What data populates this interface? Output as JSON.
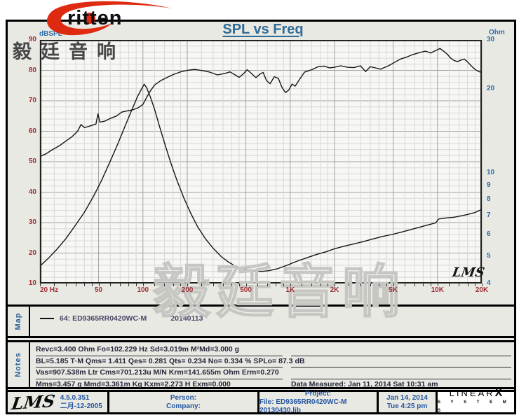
{
  "title": "SPL vs Freq",
  "brand": {
    "logo_word": "ritten",
    "logo_swoosh_color": "#dd2a10",
    "cjk": "毅廷音响"
  },
  "watermark": {
    "center": "毅廷音响"
  },
  "plot_logo": "LMS",
  "chart_data": {
    "type": "line",
    "title": "SPL vs Freq",
    "x_axis": {
      "scale": "log",
      "min": 20,
      "max": 20000,
      "ticks": [
        {
          "f": 20,
          "label": "20 Hz"
        },
        {
          "f": 50,
          "label": "50"
        },
        {
          "f": 100,
          "label": "100"
        },
        {
          "f": 200,
          "label": "200"
        },
        {
          "f": 500,
          "label": "500"
        },
        {
          "f": 1000,
          "label": "1K"
        },
        {
          "f": 2000,
          "label": "2K"
        },
        {
          "f": 5000,
          "label": "5K"
        },
        {
          "f": 10000,
          "label": "10K"
        },
        {
          "f": 20000,
          "label": "20K"
        }
      ],
      "minor": [
        25,
        30,
        35,
        40,
        45,
        60,
        70,
        80,
        90,
        120,
        140,
        160,
        180,
        250,
        300,
        350,
        400,
        450,
        600,
        700,
        800,
        900,
        1200,
        1400,
        1600,
        1800,
        2500,
        3000,
        3500,
        4000,
        4500,
        6000,
        7000,
        8000,
        9000,
        12000,
        14000,
        16000,
        18000
      ]
    },
    "y_left": {
      "label": "dBSPL",
      "scale": "linear",
      "min": 10,
      "max": 90,
      "ticks": [
        90,
        80,
        70,
        60,
        50,
        40,
        30,
        20,
        10
      ]
    },
    "y_right": {
      "label": "Ohm",
      "scale": "log",
      "min": 4,
      "max": 30,
      "ticks": [
        30,
        20,
        10,
        9,
        8,
        7,
        6,
        5,
        4
      ]
    },
    "colors": {
      "plot_bg": "#f7f7f4",
      "grid_minor": "#d8d8d4",
      "grid_major": "#a2a29e",
      "curve": "#151515",
      "border": "#222"
    },
    "series": [
      {
        "name": "SPL (dBSPL)",
        "axis": "left",
        "points": [
          [
            20,
            51.7
          ],
          [
            22,
            52.6
          ],
          [
            24,
            53.8
          ],
          [
            27,
            55.2
          ],
          [
            30,
            56.8
          ],
          [
            33,
            58.2
          ],
          [
            36,
            60
          ],
          [
            38,
            62.2
          ],
          [
            40,
            61.2
          ],
          [
            43,
            61.6
          ],
          [
            46,
            62.1
          ],
          [
            48,
            62.4
          ],
          [
            49.5,
            65.7
          ],
          [
            51,
            63
          ],
          [
            55,
            63.3
          ],
          [
            60,
            64.2
          ],
          [
            66,
            65
          ],
          [
            72,
            66.3
          ],
          [
            78,
            66.7
          ],
          [
            85,
            67
          ],
          [
            92,
            67.6
          ],
          [
            100,
            68.8
          ],
          [
            107,
            71.5
          ],
          [
            113,
            73.4
          ],
          [
            120,
            75.2
          ],
          [
            132,
            76.6
          ],
          [
            145,
            77.6
          ],
          [
            160,
            78.6
          ],
          [
            180,
            79.5
          ],
          [
            200,
            80
          ],
          [
            225,
            80.3
          ],
          [
            255,
            79.9
          ],
          [
            285,
            79.4
          ],
          [
            320,
            78.5
          ],
          [
            360,
            79
          ],
          [
            390,
            79.5
          ],
          [
            420,
            78.6
          ],
          [
            450,
            77.7
          ],
          [
            480,
            78.8
          ],
          [
            510,
            80.2
          ],
          [
            545,
            79
          ],
          [
            585,
            77.6
          ],
          [
            625,
            78.8
          ],
          [
            655,
            79.3
          ],
          [
            690,
            76.7
          ],
          [
            730,
            75.6
          ],
          [
            780,
            77.9
          ],
          [
            830,
            77.4
          ],
          [
            880,
            74.4
          ],
          [
            930,
            72.7
          ],
          [
            980,
            73.6
          ],
          [
            1030,
            75.5
          ],
          [
            1080,
            74.8
          ],
          [
            1150,
            76.8
          ],
          [
            1250,
            79.4
          ],
          [
            1400,
            80.2
          ],
          [
            1550,
            81.2
          ],
          [
            1700,
            81.4
          ],
          [
            1850,
            80.8
          ],
          [
            2000,
            81
          ],
          [
            2200,
            81.5
          ],
          [
            2450,
            81
          ],
          [
            2700,
            80.9
          ],
          [
            3000,
            81.5
          ],
          [
            3250,
            79.6
          ],
          [
            3500,
            81.2
          ],
          [
            3800,
            80.8
          ],
          [
            4100,
            80.4
          ],
          [
            4400,
            81
          ],
          [
            4700,
            81.6
          ],
          [
            5100,
            82.6
          ],
          [
            5600,
            83.7
          ],
          [
            6200,
            84.4
          ],
          [
            6800,
            85.2
          ],
          [
            7500,
            85.8
          ],
          [
            8300,
            86.3
          ],
          [
            9000,
            85.7
          ],
          [
            9600,
            86.4
          ],
          [
            10400,
            87.2
          ],
          [
            11000,
            86.3
          ],
          [
            11600,
            85.4
          ],
          [
            12300,
            84
          ],
          [
            13000,
            83.2
          ],
          [
            13700,
            82.9
          ],
          [
            14500,
            83.4
          ],
          [
            15200,
            83.7
          ],
          [
            16000,
            82.8
          ],
          [
            17000,
            81.4
          ],
          [
            18000,
            80.3
          ],
          [
            19000,
            79.6
          ],
          [
            20000,
            79.3
          ]
        ]
      },
      {
        "name": "Impedance (Ohm)",
        "axis": "right",
        "points": [
          [
            20,
            4.62
          ],
          [
            23,
            4.95
          ],
          [
            26,
            5.3
          ],
          [
            30,
            5.8
          ],
          [
            35,
            6.5
          ],
          [
            40,
            7.2
          ],
          [
            46,
            8.2
          ],
          [
            52,
            9.3
          ],
          [
            60,
            11
          ],
          [
            68,
            12.8
          ],
          [
            76,
            14.8
          ],
          [
            84,
            16.8
          ],
          [
            92,
            18.8
          ],
          [
            98,
            20
          ],
          [
            102,
            20.8
          ],
          [
            106,
            20.2
          ],
          [
            112,
            18.8
          ],
          [
            120,
            16.9
          ],
          [
            130,
            14.6
          ],
          [
            142,
            12.5
          ],
          [
            155,
            10.8
          ],
          [
            170,
            9.4
          ],
          [
            190,
            8.1
          ],
          [
            210,
            7.2
          ],
          [
            235,
            6.4
          ],
          [
            265,
            5.8
          ],
          [
            300,
            5.35
          ],
          [
            340,
            5.0
          ],
          [
            380,
            4.78
          ],
          [
            430,
            4.6
          ],
          [
            490,
            4.5
          ],
          [
            560,
            4.44
          ],
          [
            640,
            4.42
          ],
          [
            720,
            4.45
          ],
          [
            820,
            4.52
          ],
          [
            950,
            4.65
          ],
          [
            1100,
            4.8
          ],
          [
            1300,
            4.95
          ],
          [
            1500,
            5.08
          ],
          [
            1750,
            5.2
          ],
          [
            2000,
            5.33
          ],
          [
            2300,
            5.44
          ],
          [
            2700,
            5.55
          ],
          [
            3100,
            5.65
          ],
          [
            3600,
            5.77
          ],
          [
            4200,
            5.9
          ],
          [
            4900,
            6.0
          ],
          [
            5700,
            6.12
          ],
          [
            6600,
            6.25
          ],
          [
            7600,
            6.38
          ],
          [
            8700,
            6.5
          ],
          [
            9700,
            6.6
          ],
          [
            10200,
            6.82
          ],
          [
            11500,
            6.88
          ],
          [
            13000,
            6.92
          ],
          [
            14500,
            7.0
          ],
          [
            16000,
            7.08
          ],
          [
            18000,
            7.2
          ],
          [
            20000,
            7.38
          ]
        ]
      }
    ]
  },
  "map": {
    "label": "Map",
    "legend_id": "64: ED9365RR0420WC-M",
    "legend_date": "20140113"
  },
  "notes": {
    "label": "Notes",
    "lines": [
      "Revc=3.400 Ohm  Fo=102.229 Hz  Sd=3.019m M²Md=3.000 g",
      "BL=5.185 T·M  Qms= 1.411  Qes= 0.281  Qts= 0.234  No= 0.334 %  SPLo= 87.3 dB",
      "Vas=907.538m Ltr  Cms=701.213u M/N  Krm=141.655m Ohm  Erm=0.270",
      "Mms=3.457 g  Mmd=3.361m Kg  Kxm=2.273 H  Exm=0.000"
    ],
    "data_measured": "Data Measured: Jan 11, 2014  Sat 10:31 am"
  },
  "footer": {
    "lms_script": "LMS",
    "version": "4.5.0.351",
    "version_date": "二月-12-2005",
    "person": "Person:",
    "company": "Company:",
    "project": "Project:",
    "file": "File: ED9365RR0420WC-M  20130430.lib",
    "date": "Jan 14, 2014",
    "time": "Tue  4:25 pm",
    "linearx_1": "LINEAR",
    "linearx_x": "X",
    "linearx_2": "S Y S T E M S"
  }
}
